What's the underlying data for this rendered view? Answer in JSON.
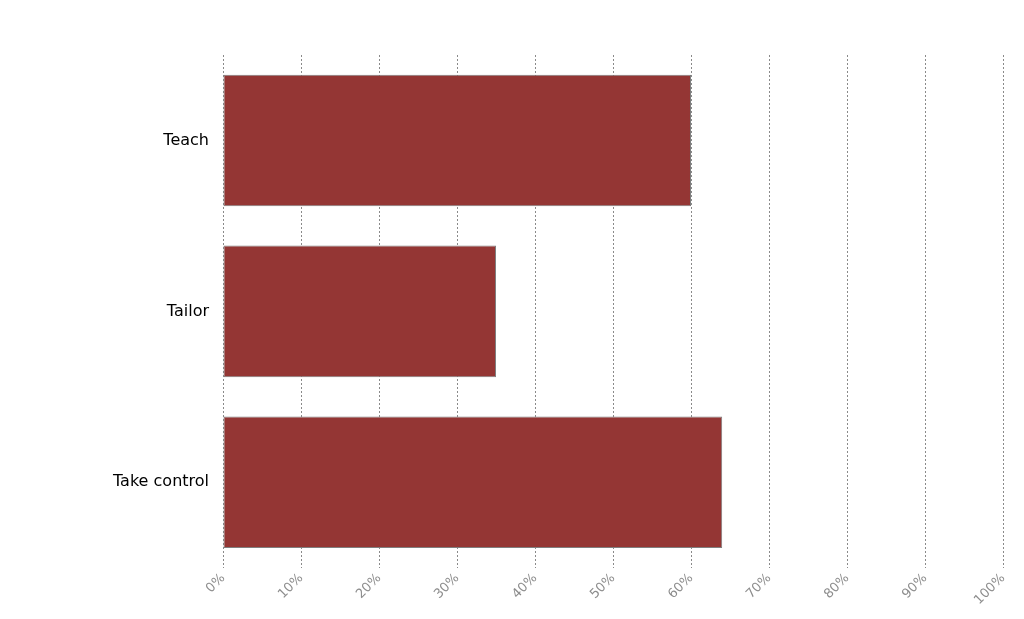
{
  "chart_data": {
    "type": "bar",
    "orientation": "horizontal",
    "categories": [
      "Teach",
      "Tailor",
      "Take control"
    ],
    "series": [
      {
        "color": "#943634",
        "values": [
          60,
          35,
          64
        ]
      }
    ],
    "xlim": [
      0,
      100
    ],
    "xticks": [
      {
        "value": 0,
        "label": "0%"
      },
      {
        "value": 10,
        "label": "10%"
      },
      {
        "value": 20,
        "label": "20%"
      },
      {
        "value": 30,
        "label": "30%"
      },
      {
        "value": 40,
        "label": "40%"
      },
      {
        "value": 50,
        "label": "50%"
      },
      {
        "value": 60,
        "label": "60%"
      },
      {
        "value": 70,
        "label": "70%"
      },
      {
        "value": 80,
        "label": "80%"
      },
      {
        "value": 90,
        "label": "90%"
      },
      {
        "value": 100,
        "label": "100%"
      }
    ],
    "grid": "x",
    "legend": false
  }
}
